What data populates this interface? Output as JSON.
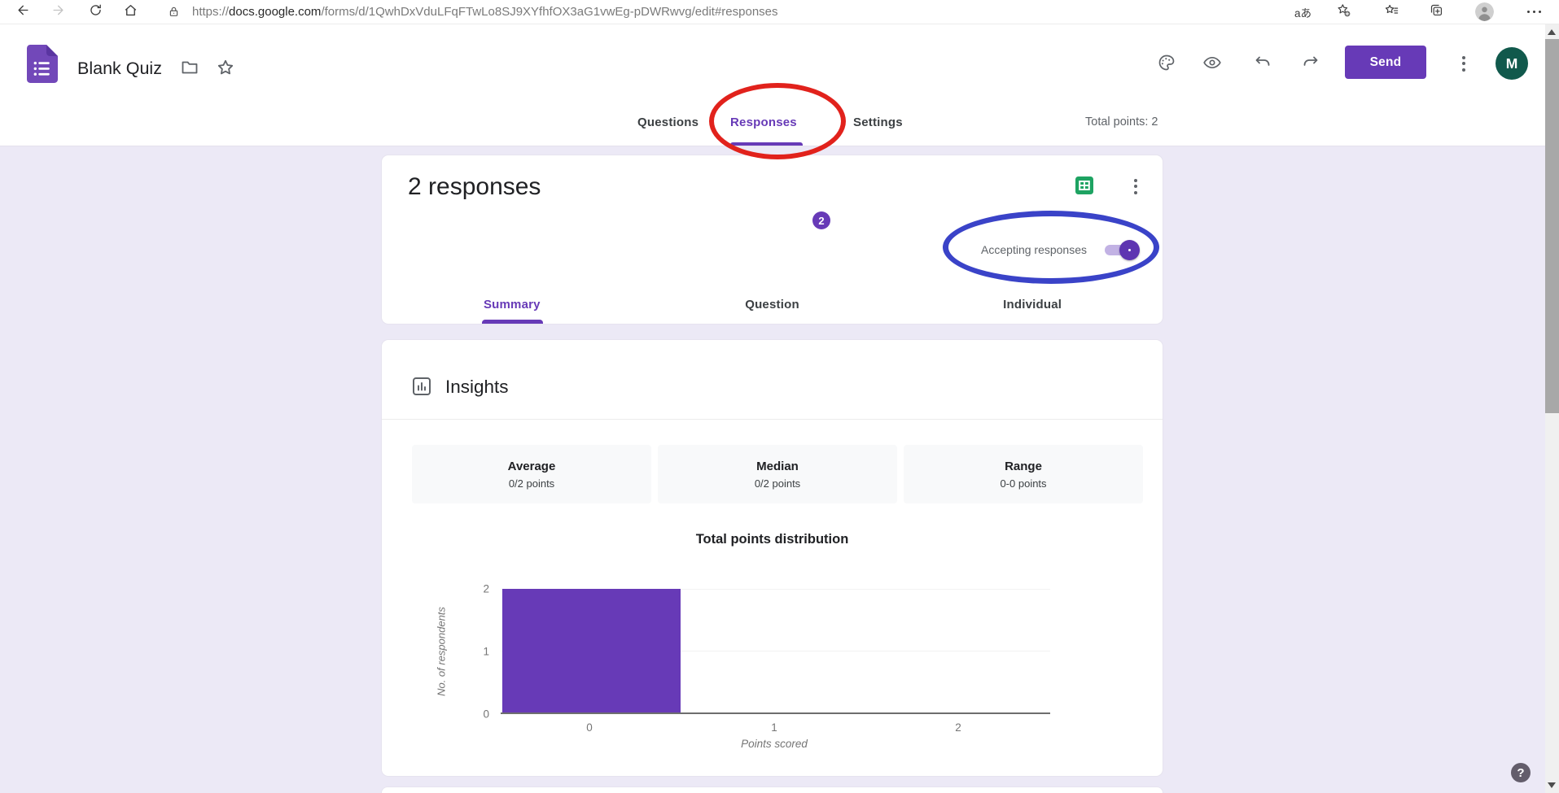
{
  "browser": {
    "url_protocol": "https://",
    "url_domain": "docs.google.com",
    "url_path": "/forms/d/1QwhDxVduLFqFTwLo8SJ9XYfhfOX3aG1vwEg-pDWRwvg/edit#responses",
    "translate_label": "aあ",
    "icons": [
      "back-icon",
      "forward-icon",
      "refresh-icon",
      "home-icon",
      "lock-icon",
      "translate-icon",
      "add-favorite-icon",
      "favorites-icon",
      "collections-icon",
      "profile-icon",
      "more-icon"
    ]
  },
  "header": {
    "title": "Blank Quiz",
    "send_label": "Send",
    "avatar_letter": "M",
    "icons": [
      "forms-logo-icon",
      "folder-icon",
      "star-icon",
      "palette-icon",
      "preview-eye-icon",
      "undo-icon",
      "redo-icon",
      "kebab-icon"
    ]
  },
  "tabbar": {
    "questions": "Questions",
    "responses": "Responses",
    "responses_badge": "2",
    "settings": "Settings",
    "total_points": "Total points: 2"
  },
  "responses_card": {
    "heading": "2 responses",
    "accepting_label": "Accepting responses",
    "accepting_on": true,
    "subtabs": [
      "Summary",
      "Question",
      "Individual"
    ],
    "icons": [
      "sheets-icon",
      "kebab-icon"
    ]
  },
  "insights": {
    "title": "Insights",
    "stats": [
      {
        "label": "Average",
        "value": "0/2 points"
      },
      {
        "label": "Median",
        "value": "0/2 points"
      },
      {
        "label": "Range",
        "value": "0-0 points"
      }
    ]
  },
  "chart_data": {
    "type": "bar",
    "title": "Total points distribution",
    "xlabel": "Points scored",
    "ylabel": "No. of respondents",
    "categories": [
      "0",
      "1",
      "2"
    ],
    "values": [
      2,
      0,
      0
    ],
    "yticks": [
      0,
      1,
      2
    ],
    "ylim": [
      0,
      2
    ],
    "grid": true,
    "legend": false,
    "bar_color": "#673ab7"
  },
  "help_label": "?",
  "annotations": [
    "red-ellipse around Responses tab",
    "blue-ellipse around Accepting responses toggle"
  ],
  "colors": {
    "accent_purple": "#673ab7",
    "sheets_green": "#1ea362",
    "avatar_green": "#11594c",
    "annotation_red": "#e1221c",
    "annotation_blue": "#3a43c8",
    "page_bg": "#ece9f6"
  }
}
